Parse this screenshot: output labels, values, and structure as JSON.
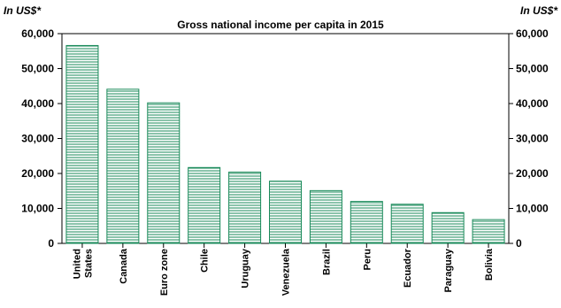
{
  "chart_data": {
    "type": "bar",
    "title": "Gross national income per capita in 2015",
    "unit_left": "In US$*",
    "unit_right": "In US$*",
    "categories": [
      "United States",
      "Canada",
      "Euro zone",
      "Chile",
      "Uruguay",
      "Venezuela",
      "Brazil",
      "Peru",
      "Ecuador",
      "Paraguay",
      "Bolivia"
    ],
    "category_lines": [
      [
        "United",
        "States"
      ],
      [
        "Canada"
      ],
      [
        "Euro zone"
      ],
      [
        "Chile"
      ],
      [
        "Uruguay"
      ],
      [
        "Venezuela"
      ],
      [
        "Brazil"
      ],
      [
        "Peru"
      ],
      [
        "Ecuador"
      ],
      [
        "Paraguay"
      ],
      [
        "Bolivia"
      ]
    ],
    "values": [
      56600,
      44100,
      40200,
      21700,
      20400,
      17800,
      15100,
      12000,
      11200,
      8800,
      6800
    ],
    "ylim": [
      0,
      60000
    ],
    "yticks": [
      0,
      10000,
      20000,
      30000,
      40000,
      50000,
      60000
    ],
    "ytick_labels": [
      "0",
      "10,000",
      "20,000",
      "30,000",
      "40,000",
      "50,000",
      "60,000"
    ],
    "grid": false,
    "legend": "none",
    "bar_fill": "hatched horizontal lines",
    "bar_color": "#1a8a5a"
  }
}
